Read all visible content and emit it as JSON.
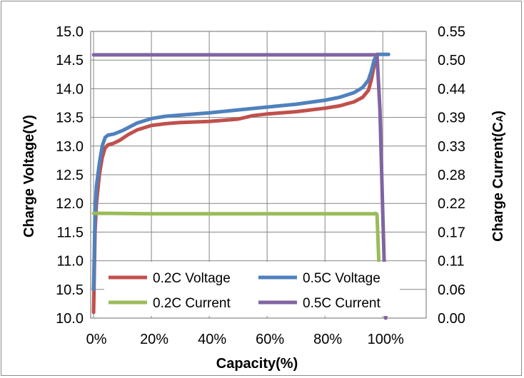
{
  "chart_data": {
    "type": "line",
    "title": "",
    "xlabel": "Capacity(%)",
    "ylabel": "Charge Voltage(V)",
    "y2label": "Charge Current(CA)",
    "y2label_main": "Charge Current(C",
    "y2label_sub": "A",
    "y2label_close": ")",
    "xlim": [
      -1,
      115
    ],
    "ylim": [
      10.0,
      15.0
    ],
    "y2lim": [
      0.0,
      0.55
    ],
    "x_ticks": [
      "0%",
      "20%",
      "40%",
      "60%",
      "80%",
      "100%"
    ],
    "x_tick_values": [
      0,
      20,
      40,
      60,
      80,
      100
    ],
    "y_ticks": [
      "10.0",
      "10.5",
      "11.0",
      "11.5",
      "12.0",
      "12.5",
      "13.0",
      "13.5",
      "14.0",
      "14.5",
      "15.0"
    ],
    "y_tick_values": [
      10.0,
      10.5,
      11.0,
      11.5,
      12.0,
      12.5,
      13.0,
      13.5,
      14.0,
      14.5,
      15.0
    ],
    "y2_ticks": [
      "0.00",
      "0.06",
      "0.11",
      "0.17",
      "0.22",
      "0.28",
      "0.33",
      "0.39",
      "0.44",
      "0.50",
      "0.55"
    ],
    "grid": true,
    "legend_position": "bottom-center inside plot",
    "series": [
      {
        "name": "0.2C Voltage",
        "axis": "left",
        "color": "#c0504d",
        "points": [
          [
            0,
            10.1
          ],
          [
            0.5,
            11.5
          ],
          [
            1,
            12.0
          ],
          [
            2,
            12.5
          ],
          [
            3,
            12.8
          ],
          [
            4,
            12.97
          ],
          [
            5,
            13.02
          ],
          [
            7,
            13.05
          ],
          [
            9,
            13.1
          ],
          [
            12,
            13.2
          ],
          [
            15,
            13.28
          ],
          [
            20,
            13.36
          ],
          [
            25,
            13.39
          ],
          [
            30,
            13.41
          ],
          [
            40,
            13.43
          ],
          [
            50,
            13.47
          ],
          [
            55,
            13.53
          ],
          [
            60,
            13.56
          ],
          [
            70,
            13.6
          ],
          [
            80,
            13.66
          ],
          [
            85,
            13.7
          ],
          [
            90,
            13.77
          ],
          [
            93,
            13.85
          ],
          [
            95,
            13.97
          ],
          [
            96,
            14.15
          ],
          [
            97,
            14.4
          ],
          [
            98,
            14.6
          ]
        ]
      },
      {
        "name": "0.5C Voltage",
        "axis": "left",
        "color": "#4f81bd",
        "points": [
          [
            0,
            10.5
          ],
          [
            0.5,
            11.8
          ],
          [
            1,
            12.3
          ],
          [
            2,
            12.7
          ],
          [
            3,
            13.0
          ],
          [
            4,
            13.15
          ],
          [
            5,
            13.19
          ],
          [
            7,
            13.21
          ],
          [
            10,
            13.27
          ],
          [
            15,
            13.4
          ],
          [
            20,
            13.48
          ],
          [
            25,
            13.52
          ],
          [
            30,
            13.54
          ],
          [
            40,
            13.58
          ],
          [
            50,
            13.63
          ],
          [
            60,
            13.68
          ],
          [
            70,
            13.73
          ],
          [
            80,
            13.8
          ],
          [
            85,
            13.85
          ],
          [
            90,
            13.93
          ],
          [
            93,
            14.02
          ],
          [
            95,
            14.15
          ],
          [
            96,
            14.3
          ],
          [
            97,
            14.5
          ],
          [
            98,
            14.6
          ],
          [
            102,
            14.6
          ]
        ]
      },
      {
        "name": "0.2C Current",
        "axis": "right",
        "color": "#9bbb59",
        "points": [
          [
            0,
            0.201
          ],
          [
            5,
            0.201
          ],
          [
            20,
            0.2
          ],
          [
            40,
            0.2
          ],
          [
            60,
            0.2
          ],
          [
            80,
            0.2
          ],
          [
            97,
            0.2
          ],
          [
            97.5,
            0.201
          ],
          [
            98,
            0.199
          ],
          [
            98.6,
            0.11
          ]
        ]
      },
      {
        "name": "0.5C Current",
        "axis": "right",
        "color": "#8064a2",
        "points": [
          [
            0,
            0.505
          ],
          [
            20,
            0.505
          ],
          [
            40,
            0.505
          ],
          [
            60,
            0.505
          ],
          [
            80,
            0.505
          ],
          [
            97,
            0.505
          ],
          [
            98,
            0.505
          ],
          [
            99,
            0.4
          ],
          [
            99.5,
            0.3
          ],
          [
            100,
            0.2
          ],
          [
            100.5,
            0.1
          ],
          [
            101,
            0.0
          ]
        ]
      }
    ]
  }
}
